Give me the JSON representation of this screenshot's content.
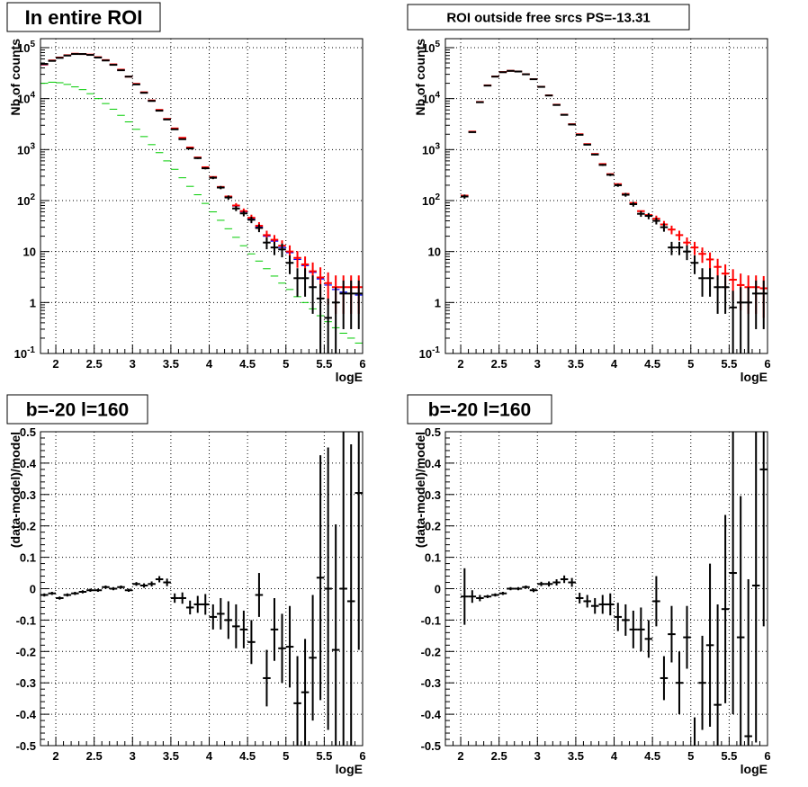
{
  "chart_data": [
    {
      "type": "scatter",
      "title": "In entire ROI",
      "xlabel": "logE",
      "ylabel": "Nb of counts",
      "yscale": "log",
      "xlim": [
        1.8,
        6.0
      ],
      "ylim": [
        0.1,
        150000
      ],
      "grid": true,
      "x_ticks": [
        "2",
        "2.5",
        "3",
        "3.5",
        "4",
        "4.5",
        "5",
        "5.5",
        "6"
      ],
      "y_ticks": [
        "10^-1",
        "1",
        "10",
        "10^2",
        "10^3",
        "10^4",
        "10^5"
      ],
      "colors": {
        "data": "#000000",
        "total_model": "#ff0000",
        "blue_model": "#0000ff",
        "green_model": "#00cc00"
      },
      "x": [
        1.85,
        1.95,
        2.05,
        2.15,
        2.25,
        2.35,
        2.45,
        2.55,
        2.65,
        2.75,
        2.85,
        2.95,
        3.05,
        3.15,
        3.25,
        3.35,
        3.45,
        3.55,
        3.65,
        3.75,
        3.85,
        3.95,
        4.05,
        4.15,
        4.25,
        4.35,
        4.45,
        4.55,
        4.65,
        4.75,
        4.85,
        4.95,
        5.05,
        5.15,
        5.25,
        5.35,
        5.45,
        5.55,
        5.65,
        5.75,
        5.85,
        5.95
      ],
      "series": [
        {
          "values": [
            48000,
            55000,
            63000,
            70000,
            75000,
            75000,
            72000,
            64000,
            56000,
            46000,
            36000,
            27000,
            19000,
            13000,
            9000,
            5800,
            3900,
            2500,
            1600,
            1050,
            680,
            430,
            280,
            180,
            115,
            70,
            56,
            42,
            29,
            15,
            12,
            11,
            6,
            3,
            3,
            2,
            1.2,
            0.5,
            1.0,
            1.5,
            1.5,
            1.5
          ],
          "err": [
            220,
            235,
            250,
            265,
            274,
            274,
            268,
            253,
            237,
            214,
            190,
            164,
            138,
            114,
            95,
            76,
            62,
            50,
            40,
            32,
            26,
            21,
            17,
            13,
            11,
            8,
            7,
            6,
            5,
            3.9,
            3.5,
            3.3,
            2.4,
            1.7,
            1.7,
            1.4,
            1.1,
            0.7,
            1.0,
            1.2,
            1.2,
            1.2
          ]
        },
        {
          "values": [
            47000,
            56000,
            64000,
            71000,
            76000,
            75000,
            73000,
            65000,
            57000,
            47000,
            37000,
            27000,
            19500,
            13300,
            9200,
            6000,
            4000,
            2600,
            1700,
            1100,
            700,
            450,
            290,
            185,
            120,
            80,
            62,
            46,
            32,
            21,
            17,
            13,
            10,
            7.5,
            5.6,
            4.1,
            3.1,
            2.4,
            2.0,
            2.0,
            2.0,
            2.0
          ],
          "err": [
            0,
            0,
            0,
            0,
            0,
            0,
            0,
            0,
            0,
            0,
            0,
            0,
            0,
            0,
            0,
            0,
            0,
            0,
            0,
            0,
            0,
            0,
            0,
            0,
            0,
            8.9,
            7.9,
            6.8,
            5.7,
            4.6,
            4.1,
            3.6,
            3.2,
            2.7,
            2.4,
            2.0,
            1.8,
            1.5,
            1.4,
            1.4,
            1.4,
            1.4
          ]
        },
        {
          "values": [
            46000,
            55000,
            63000,
            70000,
            75000,
            74000,
            72000,
            64000,
            56000,
            46000,
            36000,
            27000,
            19000,
            13000,
            9000,
            5900,
            3950,
            2550,
            1650,
            1080,
            690,
            440,
            285,
            182,
            118,
            78,
            60,
            44,
            30,
            20,
            16,
            12,
            9.5,
            7,
            5.3,
            3.9,
            2.9,
            2.2,
            1.8,
            1.6,
            1.5,
            1.4
          ]
        },
        {
          "values": [
            20000,
            21000,
            20500,
            19000,
            17000,
            15000,
            12500,
            10000,
            8000,
            6200,
            4700,
            3500,
            2500,
            1800,
            1250,
            870,
            600,
            410,
            280,
            190,
            130,
            88,
            60,
            41,
            28,
            19,
            13,
            9,
            6.5,
            4.6,
            3.3,
            2.4,
            1.8,
            1.3,
            1.0,
            0.75,
            0.55,
            0.42,
            0.32,
            0.25,
            0.2,
            0.16
          ]
        }
      ]
    },
    {
      "type": "scatter",
      "title": "ROI outside free srcs PS=-13.31",
      "xlabel": "logE",
      "ylabel": "Nb of counts",
      "yscale": "log",
      "xlim": [
        1.8,
        6.0
      ],
      "ylim": [
        0.1,
        150000
      ],
      "grid": true,
      "x_ticks": [
        "2",
        "2.5",
        "3",
        "3.5",
        "4",
        "4.5",
        "5",
        "5.5",
        "6"
      ],
      "y_ticks": [
        "10^-1",
        "1",
        "10",
        "10^2",
        "10^3",
        "10^4",
        "10^5"
      ],
      "colors": {
        "data": "#000000",
        "model": "#ff0000"
      },
      "x": [
        2.05,
        2.15,
        2.25,
        2.35,
        2.45,
        2.55,
        2.65,
        2.75,
        2.85,
        2.95,
        3.05,
        3.15,
        3.25,
        3.35,
        3.45,
        3.55,
        3.65,
        3.75,
        3.85,
        3.95,
        4.05,
        4.15,
        4.25,
        4.35,
        4.45,
        4.55,
        4.65,
        4.75,
        4.85,
        4.95,
        5.05,
        5.15,
        5.25,
        5.35,
        5.45,
        5.55,
        5.65,
        5.75,
        5.85,
        5.95
      ],
      "series": [
        {
          "values": [
            120,
            2200,
            8500,
            18000,
            27000,
            33000,
            35000,
            34000,
            30000,
            24000,
            17000,
            11500,
            7500,
            4800,
            3100,
            1950,
            1250,
            800,
            500,
            320,
            200,
            130,
            85,
            55,
            50,
            40,
            30,
            12,
            12,
            10,
            6,
            3,
            3,
            2,
            2,
            0.8,
            1.0,
            1.0,
            1.5,
            1.5
          ],
          "err": [
            11,
            47,
            92,
            134,
            164,
            182,
            187,
            184,
            173,
            155,
            130,
            107,
            87,
            69,
            56,
            44,
            35,
            28,
            22,
            18,
            14,
            11,
            9,
            7,
            7,
            6,
            5.5,
            3.5,
            3.5,
            3.2,
            2.4,
            1.7,
            1.7,
            1.4,
            1.4,
            0.9,
            1.0,
            1.0,
            1.2,
            1.2
          ]
        },
        {
          "values": [
            125,
            2250,
            8600,
            18200,
            27200,
            33200,
            35200,
            34100,
            30100,
            24100,
            17100,
            11600,
            7600,
            4850,
            3150,
            2000,
            1280,
            820,
            520,
            330,
            210,
            135,
            90,
            62,
            52,
            44,
            34,
            27,
            21,
            15,
            12,
            9,
            7,
            5,
            3.7,
            2.8,
            2.2,
            2.0,
            2.0,
            1.9
          ],
          "err": [
            0,
            0,
            0,
            0,
            0,
            0,
            0,
            0,
            0,
            0,
            0,
            0,
            0,
            0,
            0,
            0,
            0,
            0,
            0,
            0,
            0,
            0,
            0,
            0,
            0,
            6.6,
            5.8,
            5.2,
            4.6,
            3.9,
            3.5,
            3.0,
            2.6,
            2.2,
            1.9,
            1.7,
            1.5,
            1.4,
            1.4,
            1.4
          ]
        }
      ]
    },
    {
      "type": "scatter",
      "title": "b=-20 l=160",
      "xlabel": "logE",
      "ylabel": "(data-model)/model",
      "xlim": [
        1.8,
        6.0
      ],
      "ylim": [
        -0.5,
        0.5
      ],
      "grid": true,
      "x_ticks": [
        "2",
        "2.5",
        "3",
        "3.5",
        "4",
        "4.5",
        "5",
        "5.5",
        "6"
      ],
      "y_ticks": [
        "-0.5",
        "-0.4",
        "-0.3",
        "-0.2",
        "-0.1",
        "0",
        "0.1",
        "0.2",
        "0.3",
        "0.4",
        "0.5"
      ],
      "x": [
        1.85,
        1.95,
        2.05,
        2.15,
        2.25,
        2.35,
        2.45,
        2.55,
        2.65,
        2.75,
        2.85,
        2.95,
        3.05,
        3.15,
        3.25,
        3.35,
        3.45,
        3.55,
        3.65,
        3.75,
        3.85,
        3.95,
        4.05,
        4.15,
        4.25,
        4.35,
        4.45,
        4.55,
        4.65,
        4.75,
        4.85,
        4.95,
        5.05,
        5.15,
        5.25,
        5.35,
        5.45,
        5.55,
        5.65,
        5.75,
        5.85,
        5.95
      ],
      "values": [
        -0.02,
        -0.015,
        -0.03,
        -0.02,
        -0.015,
        -0.01,
        -0.005,
        -0.005,
        0.005,
        0.0,
        0.005,
        -0.005,
        0.015,
        0.01,
        0.015,
        0.03,
        0.02,
        -0.03,
        -0.03,
        -0.06,
        -0.05,
        -0.05,
        -0.09,
        -0.08,
        -0.1,
        -0.12,
        -0.13,
        -0.17,
        -0.02,
        -0.285,
        -0.13,
        -0.19,
        -0.185,
        -0.365,
        -0.33,
        -0.22,
        0.035,
        0.0,
        -0.195,
        0.0,
        -0.04,
        0.305
      ],
      "err": [
        0.005,
        0.005,
        0.005,
        0.005,
        0.005,
        0.005,
        0.005,
        0.005,
        0.005,
        0.005,
        0.005,
        0.005,
        0.006,
        0.007,
        0.008,
        0.01,
        0.012,
        0.015,
        0.018,
        0.022,
        0.027,
        0.033,
        0.04,
        0.05,
        0.06,
        0.07,
        0.06,
        0.07,
        0.07,
        0.09,
        0.1,
        0.11,
        0.13,
        0.15,
        0.17,
        0.2,
        0.39,
        0.45,
        0.4,
        0.5,
        0.5,
        0.5
      ]
    },
    {
      "type": "scatter",
      "title": "b=-20 l=160",
      "xlabel": "logE",
      "ylabel": "(data-model)/model",
      "xlim": [
        1.8,
        6.0
      ],
      "ylim": [
        -0.5,
        0.5
      ],
      "grid": true,
      "x_ticks": [
        "2",
        "2.5",
        "3",
        "3.5",
        "4",
        "4.5",
        "5",
        "5.5",
        "6"
      ],
      "y_ticks": [
        "-0.5",
        "-0.4",
        "-0.3",
        "-0.2",
        "-0.1",
        "0",
        "0.1",
        "0.2",
        "0.3",
        "0.4",
        "0.5"
      ],
      "x": [
        2.05,
        2.15,
        2.25,
        2.35,
        2.45,
        2.55,
        2.65,
        2.75,
        2.85,
        2.95,
        3.05,
        3.15,
        3.25,
        3.35,
        3.45,
        3.55,
        3.65,
        3.75,
        3.85,
        3.95,
        4.05,
        4.15,
        4.25,
        4.35,
        4.45,
        4.55,
        4.65,
        4.75,
        4.85,
        4.95,
        5.05,
        5.15,
        5.25,
        5.35,
        5.45,
        5.55,
        5.65,
        5.75,
        5.85,
        5.95
      ],
      "values": [
        -0.025,
        -0.025,
        -0.03,
        -0.025,
        -0.02,
        -0.015,
        0.0,
        0.0,
        0.005,
        -0.005,
        0.015,
        0.015,
        0.02,
        0.03,
        0.02,
        -0.03,
        -0.04,
        -0.055,
        -0.05,
        -0.05,
        -0.09,
        -0.1,
        -0.13,
        -0.13,
        -0.16,
        -0.04,
        -0.285,
        -0.145,
        -0.3,
        -0.155,
        -0.53,
        -0.3,
        -0.18,
        -0.37,
        -0.065,
        0.05,
        -0.155,
        -0.47,
        0.01,
        0.38
      ],
      "err": [
        0.09,
        0.02,
        0.01,
        0.005,
        0.005,
        0.005,
        0.005,
        0.005,
        0.005,
        0.006,
        0.007,
        0.008,
        0.01,
        0.012,
        0.014,
        0.017,
        0.02,
        0.025,
        0.03,
        0.035,
        0.045,
        0.05,
        0.06,
        0.07,
        0.06,
        0.08,
        0.07,
        0.09,
        0.1,
        0.1,
        0.12,
        0.15,
        0.26,
        0.32,
        0.3,
        0.45,
        0.45,
        0.5,
        0.5,
        0.5
      ]
    }
  ]
}
